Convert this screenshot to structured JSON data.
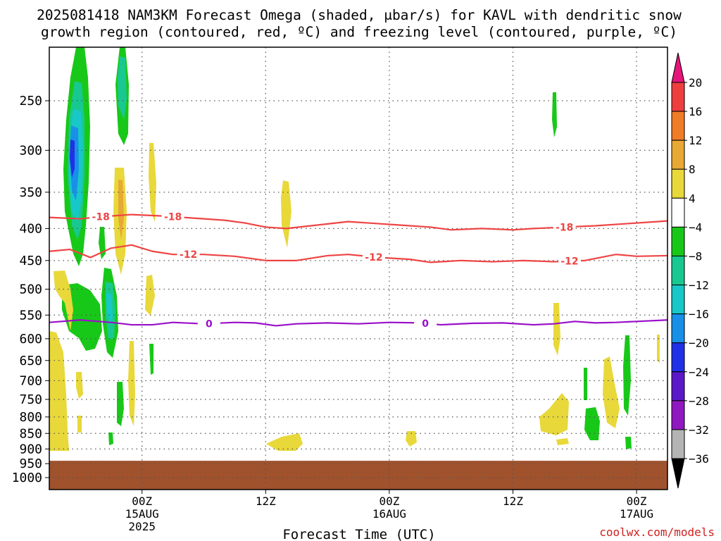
{
  "chart_data": {
    "type": "heatmap",
    "title_line1": "2025081418 NAM3KM Forecast Omega (shaded, μbar/s) for KAVL with dendritic snow",
    "title_line2": "growth region (contoured, red, ºC) and freezing level (contoured, purple, ºC)",
    "xlabel": "Forecast Time (UTC)",
    "credit": "coolwx.com/models",
    "y_ticks": [
      250,
      300,
      350,
      400,
      450,
      500,
      550,
      600,
      650,
      700,
      750,
      800,
      850,
      900,
      950,
      1000
    ],
    "ylim": [
      1000,
      200
    ],
    "y_scale": "log-pressure",
    "x_range_hours": [
      -9,
      51
    ],
    "x_ticks": [
      {
        "hour": 0,
        "l1": "00Z",
        "l2": "15AUG",
        "l3": "2025"
      },
      {
        "hour": 12,
        "l1": "12Z",
        "l2": "",
        "l3": ""
      },
      {
        "hour": 24,
        "l1": "00Z",
        "l2": "16AUG",
        "l3": ""
      },
      {
        "hour": 36,
        "l1": "12Z",
        "l2": "",
        "l3": ""
      },
      {
        "hour": 48,
        "l1": "00Z",
        "l2": "17AUG",
        "l3": ""
      }
    ],
    "grid": true,
    "colorbar": {
      "labels": [
        "20",
        "16",
        "12",
        "8",
        "4",
        "−4",
        "−8",
        "−12",
        "−16",
        "−20",
        "−24",
        "−28",
        "−32",
        "−36"
      ],
      "colors": [
        "#e6157a",
        "#ee3e3e",
        "#f07c28",
        "#e8a834",
        "#e8d83a",
        "#ffffff",
        "#18c818",
        "#18c890",
        "#18c8c8",
        "#1890e8",
        "#2030e8",
        "#5a18c8",
        "#9018c0",
        "#b4b4b4",
        "#000000"
      ]
    },
    "ground": {
      "top_pressure": 940,
      "color": "#a0522d"
    },
    "contours": [
      {
        "label": "-18",
        "color": "#ee4444",
        "label_hours": [
          -4,
          3,
          41
        ],
        "points": [
          [
            -9,
            384
          ],
          [
            -6,
            386
          ],
          [
            -4,
            383
          ],
          [
            -1,
            380
          ],
          [
            2,
            382
          ],
          [
            5,
            385
          ],
          [
            8,
            388
          ],
          [
            10,
            392
          ],
          [
            12,
            398
          ],
          [
            14,
            400
          ],
          [
            17,
            395
          ],
          [
            20,
            390
          ],
          [
            22,
            392
          ],
          [
            25,
            395
          ],
          [
            28,
            398
          ],
          [
            30,
            402
          ],
          [
            33,
            400
          ],
          [
            36,
            402
          ],
          [
            38,
            400
          ],
          [
            41,
            398
          ],
          [
            44,
            396
          ],
          [
            47,
            393
          ],
          [
            50,
            390
          ],
          [
            51,
            389
          ]
        ]
      },
      {
        "label": "-12",
        "color": "#ee4444",
        "label_hours": [
          4.5,
          22.5,
          41.5
        ],
        "points": [
          [
            -9,
            435
          ],
          [
            -7,
            432
          ],
          [
            -5,
            445
          ],
          [
            -3,
            430
          ],
          [
            -1,
            425
          ],
          [
            1,
            435
          ],
          [
            3,
            440
          ],
          [
            6,
            440
          ],
          [
            9,
            443
          ],
          [
            12,
            450
          ],
          [
            15,
            450
          ],
          [
            18,
            442
          ],
          [
            20,
            440
          ],
          [
            23,
            445
          ],
          [
            26,
            448
          ],
          [
            28,
            453
          ],
          [
            31,
            450
          ],
          [
            34,
            452
          ],
          [
            37,
            450
          ],
          [
            40,
            452
          ],
          [
            43,
            450
          ],
          [
            46,
            440
          ],
          [
            48,
            443
          ],
          [
            51,
            442
          ]
        ]
      },
      {
        "label": "0",
        "color": "#9a10c8",
        "label_hours": [
          6.5,
          27.5
        ],
        "points": [
          [
            -9,
            565
          ],
          [
            -6,
            560
          ],
          [
            -3,
            565
          ],
          [
            -1,
            570
          ],
          [
            1,
            570
          ],
          [
            3,
            565
          ],
          [
            6,
            568
          ],
          [
            9,
            565
          ],
          [
            11,
            566
          ],
          [
            13,
            572
          ],
          [
            15,
            568
          ],
          [
            18,
            566
          ],
          [
            21,
            568
          ],
          [
            24,
            565
          ],
          [
            27,
            566
          ],
          [
            29,
            570
          ],
          [
            32,
            567
          ],
          [
            35,
            566
          ],
          [
            38,
            570
          ],
          [
            40,
            568
          ],
          [
            42,
            563
          ],
          [
            44,
            566
          ],
          [
            46,
            565
          ],
          [
            48,
            563
          ],
          [
            51,
            560
          ]
        ]
      }
    ]
  }
}
